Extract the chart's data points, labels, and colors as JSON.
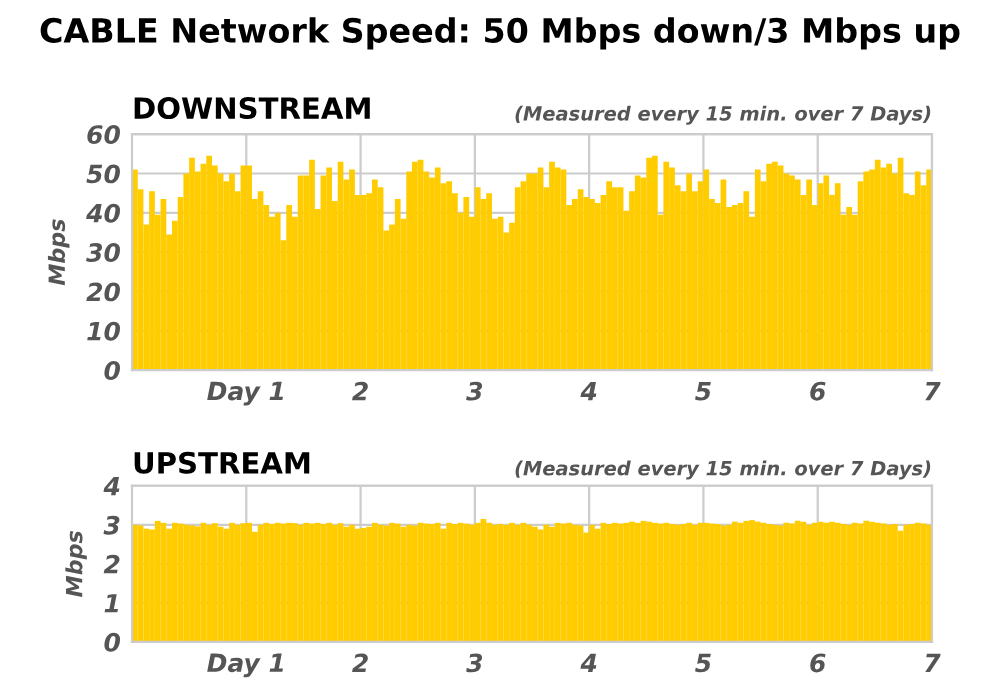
{
  "chart_data": [
    {
      "type": "bar",
      "title": "DOWNSTREAM",
      "subtitle": "(Measured every 15 min. over 7 Days)",
      "ylabel": "Mbps",
      "annotations": [
        "CABLE Network Speed: 50 Mbps down/3 Mbps up"
      ],
      "x": [
        0.025,
        0.075,
        0.125,
        0.175,
        0.225,
        0.275,
        0.325,
        0.375,
        0.425,
        0.475,
        0.525,
        0.575,
        0.625,
        0.675,
        0.725,
        0.775,
        0.825,
        0.875,
        0.925,
        0.975,
        1.025,
        1.075,
        1.125,
        1.175,
        1.225,
        1.275,
        1.325,
        1.375,
        1.425,
        1.475,
        1.525,
        1.575,
        1.625,
        1.675,
        1.725,
        1.775,
        1.825,
        1.875,
        1.925,
        1.975,
        2.025,
        2.075,
        2.125,
        2.175,
        2.225,
        2.275,
        2.325,
        2.375,
        2.425,
        2.475,
        2.525,
        2.575,
        2.625,
        2.675,
        2.725,
        2.775,
        2.825,
        2.875,
        2.925,
        2.975,
        3.025,
        3.075,
        3.125,
        3.175,
        3.225,
        3.275,
        3.325,
        3.375,
        3.425,
        3.475,
        3.525,
        3.575,
        3.625,
        3.675,
        3.725,
        3.775,
        3.825,
        3.875,
        3.925,
        3.975,
        4.025,
        4.075,
        4.125,
        4.175,
        4.225,
        4.275,
        4.325,
        4.375,
        4.425,
        4.475,
        4.525,
        4.575,
        4.625,
        4.675,
        4.725,
        4.775,
        4.825,
        4.875,
        4.925,
        4.975,
        5.025,
        5.075,
        5.125,
        5.175,
        5.225,
        5.275,
        5.325,
        5.375,
        5.425,
        5.475,
        5.525,
        5.575,
        5.625,
        5.675,
        5.725,
        5.775,
        5.825,
        5.875,
        5.925,
        5.975,
        6.025,
        6.075,
        6.125,
        6.175,
        6.225,
        6.275,
        6.325,
        6.375,
        6.425,
        6.475,
        6.525,
        6.575,
        6.625,
        6.675,
        6.725,
        6.775,
        6.825,
        6.875,
        6.925,
        6.975
      ],
      "values": [
        51,
        46,
        37,
        45.5,
        39.5,
        43.5,
        34.5,
        38,
        44,
        50,
        54,
        50.5,
        52.5,
        54.5,
        52,
        50,
        48,
        50,
        45.5,
        52,
        52,
        43.5,
        45.5,
        42,
        39,
        40,
        33,
        42,
        39,
        49.5,
        49.5,
        53.5,
        41,
        49.5,
        51.5,
        43,
        53,
        48.5,
        51,
        44.5,
        44.5,
        45,
        48.5,
        46.5,
        35.5,
        37,
        43.5,
        38.5,
        50.5,
        53,
        53.5,
        50.5,
        49,
        51.5,
        47.5,
        48,
        45,
        40,
        44,
        39,
        46.5,
        43.5,
        45,
        38.5,
        39,
        35,
        37.5,
        46.5,
        48,
        50,
        50,
        51.5,
        46.5,
        53,
        51.5,
        51,
        42,
        43.5,
        46,
        44,
        43.5,
        42.5,
        44.5,
        48,
        46.5,
        46.5,
        40.5,
        45.5,
        49.5,
        49,
        54,
        54.5,
        39.5,
        53,
        51.5,
        47,
        45.5,
        50,
        45.5,
        48,
        51,
        43.5,
        42.5,
        48.5,
        41.5,
        42,
        42.5,
        45.5,
        39,
        51,
        48,
        52.5,
        53,
        52,
        50,
        49.5,
        48.5,
        44.5,
        48.5,
        42,
        47.5,
        49.5,
        44.5,
        47.5,
        39.5,
        41.5,
        39.5,
        48,
        50.5,
        51,
        53.5,
        51.5,
        52.5,
        50,
        54,
        45,
        44.5,
        50.5,
        47,
        51
      ],
      "color": "#ffcc00",
      "xlim": [
        0,
        7
      ],
      "ylim": [
        0,
        60
      ],
      "yticks": [
        0,
        10,
        20,
        30,
        40,
        50,
        60
      ],
      "xticks": [
        {
          "value": 1,
          "label": "Day 1"
        },
        2,
        3,
        4,
        5,
        6,
        7
      ],
      "grid": true
    },
    {
      "type": "bar",
      "title": "UPSTREAM",
      "subtitle": "(Measured every 15 min. over 7 Days)",
      "ylabel": "Mbps",
      "x": [
        0.025,
        0.075,
        0.125,
        0.175,
        0.225,
        0.275,
        0.325,
        0.375,
        0.425,
        0.475,
        0.525,
        0.575,
        0.625,
        0.675,
        0.725,
        0.775,
        0.825,
        0.875,
        0.925,
        0.975,
        1.025,
        1.075,
        1.125,
        1.175,
        1.225,
        1.275,
        1.325,
        1.375,
        1.425,
        1.475,
        1.525,
        1.575,
        1.625,
        1.675,
        1.725,
        1.775,
        1.825,
        1.875,
        1.925,
        1.975,
        2.025,
        2.075,
        2.125,
        2.175,
        2.225,
        2.275,
        2.325,
        2.375,
        2.425,
        2.475,
        2.525,
        2.575,
        2.625,
        2.675,
        2.725,
        2.775,
        2.825,
        2.875,
        2.925,
        2.975,
        3.025,
        3.075,
        3.125,
        3.175,
        3.225,
        3.275,
        3.325,
        3.375,
        3.425,
        3.475,
        3.525,
        3.575,
        3.625,
        3.675,
        3.725,
        3.775,
        3.825,
        3.875,
        3.925,
        3.975,
        4.025,
        4.075,
        4.125,
        4.175,
        4.225,
        4.275,
        4.325,
        4.375,
        4.425,
        4.475,
        4.525,
        4.575,
        4.625,
        4.675,
        4.725,
        4.775,
        4.825,
        4.875,
        4.925,
        4.975,
        5.025,
        5.075,
        5.125,
        5.175,
        5.225,
        5.275,
        5.325,
        5.375,
        5.425,
        5.475,
        5.525,
        5.575,
        5.625,
        5.675,
        5.725,
        5.775,
        5.825,
        5.875,
        5.925,
        5.975,
        6.025,
        6.075,
        6.125,
        6.175,
        6.225,
        6.275,
        6.325,
        6.375,
        6.425,
        6.475,
        6.525,
        6.575,
        6.625,
        6.675,
        6.725,
        6.775,
        6.825,
        6.875,
        6.925,
        6.975
      ],
      "values": [
        3.0,
        2.98,
        2.9,
        2.88,
        3.1,
        3.05,
        2.9,
        3.05,
        3.03,
        3.0,
        2.98,
        2.96,
        3.05,
        3.0,
        3.04,
        2.95,
        2.9,
        3.05,
        3.0,
        3.04,
        3.05,
        2.82,
        3.0,
        3.05,
        3.02,
        3.05,
        3.03,
        3.05,
        3.04,
        3.0,
        3.05,
        3.03,
        3.05,
        3.02,
        3.05,
        3.0,
        3.04,
        2.95,
        3.0,
        2.9,
        2.92,
        2.95,
        3.05,
        3.0,
        2.98,
        3.05,
        3.03,
        2.95,
        3.0,
        2.98,
        3.05,
        3.03,
        3.02,
        3.05,
        2.9,
        3.05,
        3.02,
        3.05,
        3.03,
        3.0,
        3.05,
        3.15,
        3.05,
        3.0,
        3.02,
        3.0,
        3.05,
        3.0,
        3.05,
        3.0,
        2.95,
        2.88,
        3.0,
        2.95,
        3.05,
        3.03,
        3.05,
        3.0,
        2.98,
        2.8,
        3.0,
        2.9,
        3.05,
        3.02,
        3.05,
        3.03,
        3.05,
        3.08,
        3.05,
        3.1,
        3.08,
        3.05,
        3.03,
        3.05,
        3.02,
        3.0,
        3.02,
        3.05,
        3.0,
        3.05,
        3.05,
        3.03,
        3.02,
        2.98,
        3.0,
        3.08,
        3.05,
        3.1,
        3.12,
        3.08,
        3.05,
        3.02,
        3.0,
        2.98,
        3.05,
        3.03,
        3.1,
        3.08,
        3.0,
        3.05,
        3.08,
        3.05,
        3.08,
        3.05,
        3.02,
        3.0,
        3.05,
        3.03,
        3.1,
        3.08,
        3.05,
        3.03,
        3.0,
        3.02,
        2.85,
        3.0,
        3.02,
        3.05,
        3.03,
        3.0
      ],
      "color": "#ffcc00",
      "xlim": [
        0,
        7
      ],
      "ylim": [
        0,
        4
      ],
      "yticks": [
        0,
        1,
        2,
        3,
        4
      ],
      "xticks": [
        {
          "value": 1,
          "label": "Day 1"
        },
        2,
        3,
        4,
        5,
        6,
        7
      ],
      "grid": true
    }
  ]
}
